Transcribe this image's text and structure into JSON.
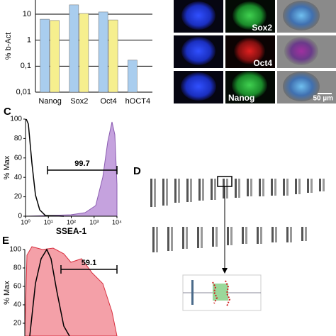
{
  "chart_data": {
    "type": "bar",
    "ylabel": "% b-Act",
    "categories": [
      "Nanog",
      "Sox2",
      "Oct4",
      "hOCT4"
    ],
    "series": [
      {
        "color": "#a9cdee",
        "values": [
          6.4,
          22.7,
          12.1,
          0.17
        ]
      },
      {
        "color": "#f6ef8e",
        "values": [
          5.7,
          10.6,
          6.0,
          null
        ]
      }
    ],
    "log_scale": true,
    "ylim": [
      0.01,
      35
    ],
    "yticks": [
      {
        "value": 0.01,
        "label": "0,01"
      },
      {
        "value": 0.1,
        "label": "0,1"
      },
      1,
      10
    ],
    "grid": true
  },
  "panel_b": {
    "labels": [
      "Sox2",
      "Oct4",
      "Nanog"
    ],
    "scale_bar": "50 µm"
  },
  "panel_c": {
    "label": "C",
    "ylabel": "% Max",
    "xlabel": "SSEA-1",
    "ylim": [
      0,
      100
    ],
    "yticks": [
      0,
      20,
      40,
      60,
      80,
      100
    ],
    "xlim": [
      1,
      10000
    ],
    "xticks": [
      {
        "value": 1,
        "label": "10⁰"
      },
      {
        "value": 10,
        "label": "10¹"
      },
      {
        "value": 100,
        "label": "10²"
      },
      {
        "value": 1000,
        "label": "10³"
      },
      {
        "value": 10000,
        "label": "10⁴"
      }
    ],
    "gate": "99.7"
  },
  "panel_d": {
    "label": "D"
  },
  "panel_e": {
    "label": "E",
    "ylabel": "% Max",
    "ylim": [
      0,
      100
    ],
    "yticks": [
      20,
      40,
      60,
      80,
      100
    ],
    "gate": "59.1"
  }
}
